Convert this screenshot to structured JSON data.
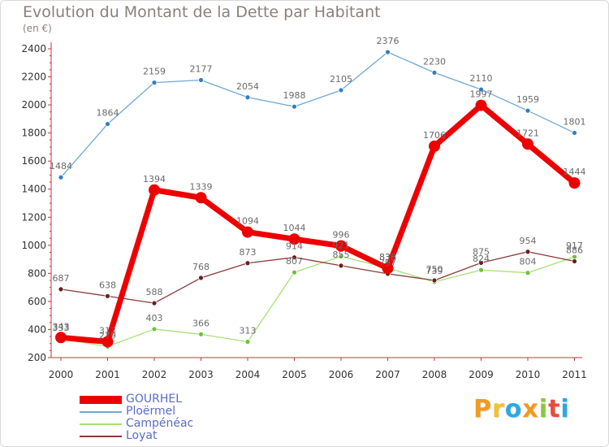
{
  "title": "Evolution du Montant de la Dette par Habitant",
  "subtitle": "(en €)",
  "logo": {
    "letters": [
      "P",
      "r",
      "o",
      "x",
      "i",
      "t",
      "i"
    ],
    "colors": [
      "#f29a1f",
      "#f2c12e",
      "#2aa9e0",
      "#f29a1f",
      "#8cc63f",
      "#e84b3c",
      "#2aa9e0"
    ]
  },
  "chart_data": {
    "type": "line",
    "title": "Evolution du Montant de la Dette par Habitant",
    "subtitle": "(en €)",
    "x": [
      "2000",
      "2001",
      "2002",
      "2003",
      "2004",
      "2005",
      "2006",
      "2007",
      "2008",
      "2009",
      "2010",
      "2011"
    ],
    "ylim": [
      200,
      2400
    ],
    "yticks": [
      200,
      400,
      600,
      800,
      1000,
      1200,
      1400,
      1600,
      1800,
      2000,
      2200,
      2400
    ],
    "grid": false,
    "legend_position": "bottom-left",
    "series": [
      {
        "name": "GOURHEL",
        "color": "#ee0000",
        "marker_color": "#ee0000",
        "highlight": true,
        "values": [
          343,
          313,
          1394,
          1339,
          1094,
          1044,
          996,
          836,
          1706,
          1997,
          1721,
          1444
        ],
        "labels": [
          "343",
          "313",
          "1394",
          "1339",
          "1094",
          "1044",
          "996",
          "836",
          "1706",
          "1997",
          "1721",
          "1444"
        ]
      },
      {
        "name": "Ploërmel",
        "color": "#6fa8d6",
        "marker_color": "#2f7fc1",
        "values": [
          1484,
          1864,
          2159,
          2177,
          2054,
          1988,
          2105,
          2376,
          2230,
          2110,
          1959,
          1801
        ],
        "labels": [
          "1484",
          "1864",
          "2159",
          "2177",
          "2054",
          "1988",
          "2105",
          "2376",
          "2230",
          "2110",
          "1959",
          "1801"
        ]
      },
      {
        "name": "Campénéac",
        "color": "#a8e07a",
        "marker_color": "#6cc23a",
        "values": [
          333,
          279,
          403,
          366,
          313,
          807,
          921,
          838,
          739,
          824,
          804,
          917
        ],
        "labels": [
          "333",
          "279",
          "403",
          "366",
          "313",
          "807",
          "921",
          "838",
          "739",
          "824",
          "804",
          "917"
        ]
      },
      {
        "name": "Loyat",
        "color": "#8c3a3a",
        "marker_color": "#6a1f1f",
        "values": [
          687,
          638,
          588,
          768,
          873,
          914,
          855,
          797,
          750,
          875,
          954,
          886
        ],
        "labels": [
          "687",
          "638",
          "588",
          "768",
          "873",
          "914",
          "855",
          "797",
          "750",
          "875",
          "954",
          "886"
        ]
      }
    ]
  }
}
